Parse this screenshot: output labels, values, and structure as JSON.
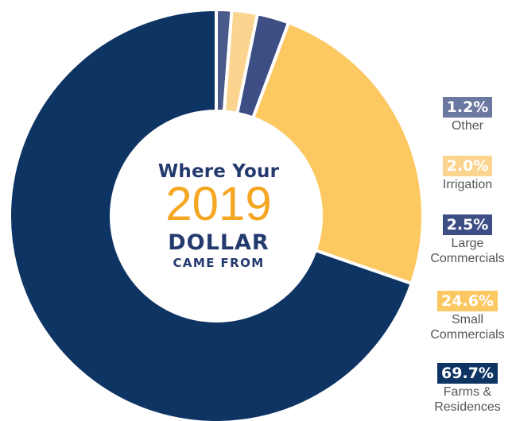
{
  "chart_data": {
    "type": "pie",
    "donut": true,
    "center_text": {
      "line1": "Where Your",
      "year": "2019",
      "line3": "DOLLAR",
      "line4": "CAME FROM"
    },
    "slices": [
      {
        "pct_label": "1.2%",
        "value": 1.2,
        "label_lines": [
          "Other"
        ],
        "color": "#4a5a8a",
        "badge_color": "#6b789f"
      },
      {
        "pct_label": "2.0%",
        "value": 2.0,
        "label_lines": [
          "Irrigation"
        ],
        "color": "#fbd58f",
        "badge_color": "#fbd58f"
      },
      {
        "pct_label": "2.5%",
        "value": 2.5,
        "label_lines": [
          "Large",
          "Commercials"
        ],
        "color": "#3d4e85",
        "badge_color": "#3d4e85"
      },
      {
        "pct_label": "24.6%",
        "value": 24.6,
        "label_lines": [
          "Small",
          "Commercials"
        ],
        "color": "#fcc862",
        "badge_color": "#fcc862"
      },
      {
        "pct_label": "69.7%",
        "value": 69.7,
        "label_lines": [
          "Farms &",
          "Residences"
        ],
        "color": "#0e3464",
        "badge_color": "#0e3464"
      }
    ]
  }
}
